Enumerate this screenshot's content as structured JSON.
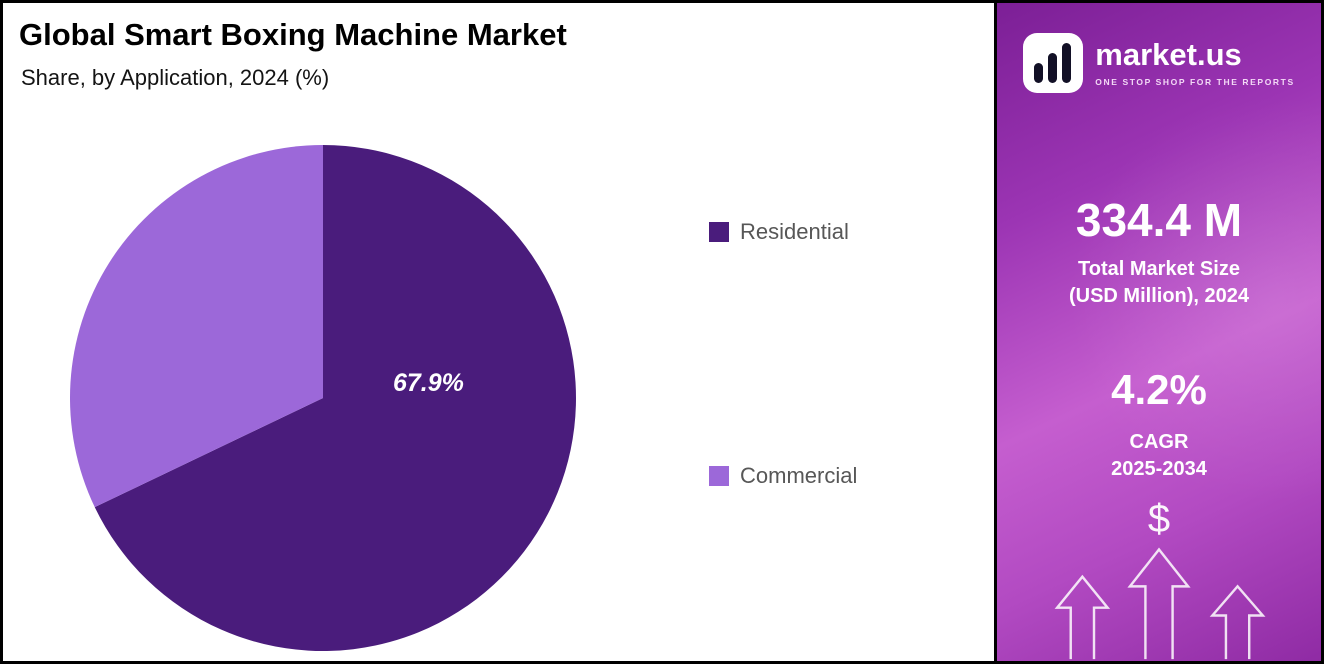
{
  "header": {
    "title": "Global Smart Boxing Machine Market",
    "subtitle": "Share, by Application, 2024 (%)"
  },
  "chart_data": {
    "type": "pie",
    "title": "Global Smart Boxing Machine Market Share, by Application, 2024 (%)",
    "unit": "%",
    "categories": [
      "Residential",
      "Commercial"
    ],
    "values": [
      67.9,
      32.1
    ],
    "slices": [
      {
        "label": "Residential",
        "value": 67.9,
        "color": "#4A1C7C",
        "data_label": "67.9%"
      },
      {
        "label": "Commercial",
        "value": 32.1,
        "color": "#9C68D9",
        "data_label": ""
      }
    ],
    "start_angle_deg": 0,
    "direction": "clockwise",
    "legend_position": "right",
    "data_label_color": "#ffffff"
  },
  "sidebar": {
    "logo": {
      "brand": "market.us",
      "tagline": "ONE STOP SHOP FOR THE REPORTS"
    },
    "market_size": {
      "value": "334.4 M",
      "label_line1": "Total Market Size",
      "label_line2": "(USD Million), 2024"
    },
    "cagr": {
      "value": "4.2%",
      "label_line1": "CAGR",
      "label_line2": "2025-2034"
    },
    "decor": {
      "dollar": "$"
    }
  }
}
